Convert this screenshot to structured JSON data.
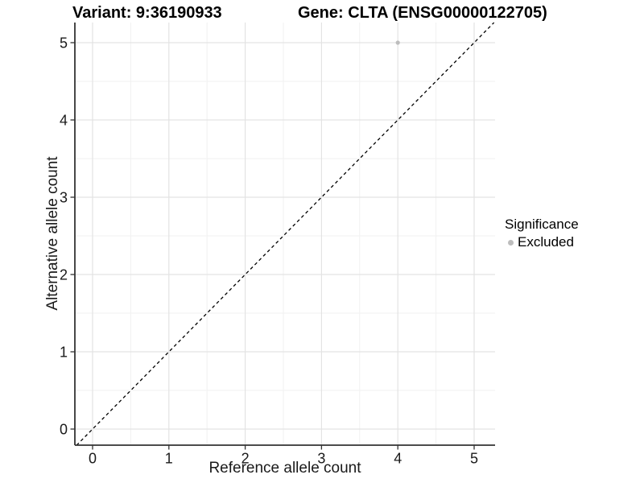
{
  "header": {
    "variant_title": "Variant: 9:36190933",
    "gene_title": "Gene: CLTA (ENSG00000122705)"
  },
  "chart_data": {
    "type": "scatter",
    "xlabel": "Reference allele count",
    "ylabel": "Alternative allele count",
    "x_ticks": [
      0,
      1,
      2,
      3,
      4,
      5
    ],
    "y_ticks": [
      0,
      1,
      2,
      3,
      4,
      5
    ],
    "x_minor_ticks": [
      0.5,
      1.5,
      2.5,
      3.5,
      4.5
    ],
    "y_minor_ticks": [
      0.5,
      1.5,
      2.5,
      3.5,
      4.5
    ],
    "xlim": [
      -0.23,
      5.27
    ],
    "ylim": [
      -0.21,
      5.26
    ],
    "grid": "major and minor gridlines on white background",
    "reference_line": {
      "equation": "y = x",
      "style": "dashed",
      "color": "#000000"
    },
    "series": [
      {
        "name": "Excluded",
        "color": "#bdbdbd",
        "points": [
          {
            "x": 4,
            "y": 5
          }
        ]
      }
    ],
    "legend": {
      "title": "Significance",
      "position": "right",
      "items": [
        {
          "label": "Excluded",
          "color": "#bdbdbd",
          "marker": "circle"
        }
      ]
    }
  },
  "style": {
    "background": "#ffffff",
    "grid_major_color": "#e3e3e3",
    "grid_minor_color": "#f1f1f1",
    "axis_line_color": "#333333",
    "tick_label_color": "#1a1a1a",
    "point_radius": 2.6
  }
}
